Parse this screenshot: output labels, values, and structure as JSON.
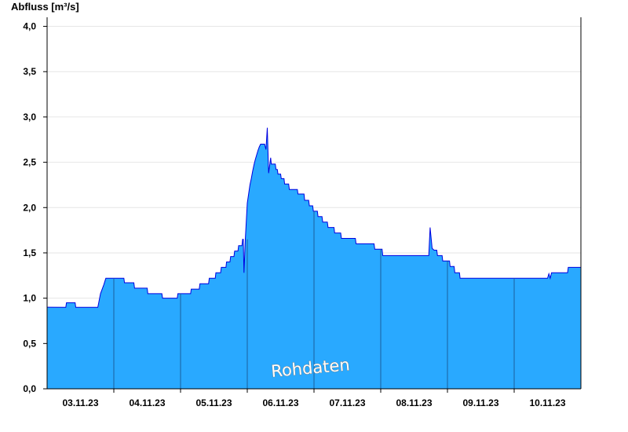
{
  "chart_data": {
    "type": "area",
    "ylabel": "Abfluss [m³/s]",
    "xlabel": "",
    "title": "",
    "watermark": "Rohdaten",
    "ylim": [
      0,
      4.1
    ],
    "yticks": [
      "0,0",
      "0,5",
      "1,0",
      "1,5",
      "2,0",
      "2,5",
      "3,0",
      "3,5",
      "4,0"
    ],
    "xticks": [
      "03.11.23",
      "04.11.23",
      "05.11.23",
      "06.11.23",
      "07.11.23",
      "08.11.23",
      "09.11.23",
      "10.11.23"
    ],
    "grid": true,
    "fill_color": "#29a9ff",
    "line_color": "#0000e0",
    "x_unit": "days since 02.11.23 00:00",
    "series": [
      {
        "x": [
          0.0,
          0.28,
          0.29,
          0.42,
          0.43,
          0.76,
          0.8,
          0.85,
          0.88,
          1.0,
          1.15,
          1.16,
          1.3,
          1.31,
          1.5,
          1.51,
          1.72,
          1.73,
          1.95,
          1.96,
          2.15,
          2.16,
          2.28,
          2.29,
          2.42,
          2.43,
          2.52,
          2.53,
          2.6,
          2.61,
          2.68,
          2.69,
          2.74,
          2.75,
          2.8,
          2.81,
          2.86,
          2.87,
          2.92,
          2.93,
          2.94,
          2.95,
          2.97,
          3.0,
          3.02,
          3.04,
          3.06,
          3.08,
          3.1,
          3.12,
          3.14,
          3.16,
          3.18,
          3.2,
          3.22,
          3.24,
          3.26,
          3.28,
          3.3,
          3.32,
          3.35,
          3.36,
          3.42,
          3.43,
          3.45,
          3.46,
          3.47,
          3.48,
          3.5,
          3.51,
          3.55,
          3.56,
          3.62,
          3.63,
          3.75,
          3.76,
          3.85,
          3.86,
          3.92,
          3.93,
          3.98,
          3.99,
          4.05,
          4.06,
          4.12,
          4.13,
          4.2,
          4.21,
          4.3,
          4.31,
          4.4,
          4.41,
          4.5,
          4.51,
          4.62,
          4.63,
          4.9,
          4.91,
          5.02,
          5.03,
          5.4,
          5.41,
          5.72,
          5.74,
          5.77,
          5.8,
          5.84,
          5.85,
          5.92,
          5.93,
          6.03,
          6.04,
          6.1,
          6.11,
          6.18,
          6.19,
          6.33,
          6.34,
          6.48,
          6.49,
          7.5,
          7.52,
          7.54,
          7.56,
          7.8,
          7.81,
          8.0
        ],
        "values": [
          0.9,
          0.9,
          0.95,
          0.95,
          0.9,
          0.9,
          1.05,
          1.15,
          1.22,
          1.22,
          1.22,
          1.17,
          1.17,
          1.11,
          1.11,
          1.05,
          1.05,
          1.0,
          1.0,
          1.05,
          1.05,
          1.1,
          1.1,
          1.16,
          1.16,
          1.22,
          1.22,
          1.28,
          1.28,
          1.34,
          1.34,
          1.4,
          1.4,
          1.46,
          1.46,
          1.52,
          1.52,
          1.58,
          1.58,
          1.65,
          1.65,
          1.28,
          1.65,
          2.05,
          2.15,
          2.25,
          2.32,
          2.4,
          2.47,
          2.53,
          2.58,
          2.63,
          2.67,
          2.7,
          2.7,
          2.7,
          2.7,
          2.64,
          2.88,
          2.38,
          2.55,
          2.48,
          2.48,
          2.42,
          2.42,
          2.37,
          2.37,
          2.37,
          2.37,
          2.32,
          2.32,
          2.26,
          2.26,
          2.2,
          2.2,
          2.15,
          2.15,
          2.08,
          2.08,
          2.02,
          2.02,
          1.96,
          1.96,
          1.9,
          1.9,
          1.84,
          1.84,
          1.78,
          1.78,
          1.72,
          1.72,
          1.66,
          1.66,
          1.66,
          1.66,
          1.6,
          1.6,
          1.54,
          1.54,
          1.47,
          1.47,
          1.47,
          1.47,
          1.78,
          1.55,
          1.53,
          1.53,
          1.47,
          1.47,
          1.41,
          1.41,
          1.35,
          1.35,
          1.28,
          1.28,
          1.22,
          1.22,
          1.22,
          1.22,
          1.22,
          1.22,
          1.27,
          1.22,
          1.28,
          1.28,
          1.34,
          1.34
        ]
      }
    ]
  }
}
